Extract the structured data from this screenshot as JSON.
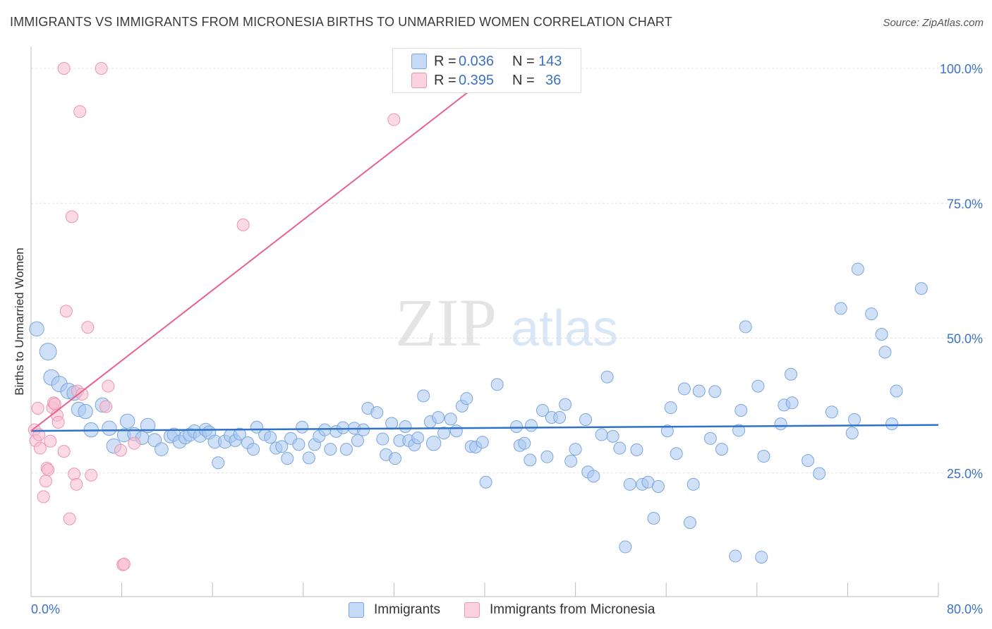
{
  "title": "IMMIGRANTS VS IMMIGRANTS FROM MICRONESIA BIRTHS TO UNMARRIED WOMEN CORRELATION CHART",
  "source": "Source: ZipAtlas.com",
  "watermark": {
    "zip": "ZIP",
    "atlas": "atlas"
  },
  "legend_stats": {
    "r_label": "R =",
    "n_label": "N =",
    "rows": [
      {
        "r": "0.036",
        "n": "143",
        "color": "#a9c8f0"
      },
      {
        "r": "0.395",
        "n": "36",
        "color": "#f8bcd0"
      }
    ]
  },
  "colors": {
    "blue_fill": "#a9c8f0",
    "blue_stroke": "#7aa6e0",
    "blue_line": "#2f72c8",
    "pink_fill": "#f8bcd0",
    "pink_stroke": "#ee93b3",
    "pink_line": "#e8628f",
    "tick_label": "#3b72c4",
    "grid": "#e0e0e0"
  },
  "chart_data": {
    "type": "scatter",
    "title": "IMMIGRANTS VS IMMIGRANTS FROM MICRONESIA BIRTHS TO UNMARRIED WOMEN CORRELATION CHART",
    "xlabel": "",
    "ylabel": "Births to Unmarried Women",
    "xlim": [
      0,
      80
    ],
    "ylim": [
      0,
      101
    ],
    "x_tick_labels": [
      "0.0%",
      "80.0%"
    ],
    "y_ticks": [
      25,
      50,
      75,
      100
    ],
    "y_tick_labels": [
      "25.0%",
      "50.0%",
      "75.0%",
      "100.0%"
    ],
    "grid": true,
    "legend_position": "top-center",
    "series": [
      {
        "name": "Immigrants",
        "color": "#a9c8f0",
        "trend": {
          "x0": 0,
          "y0": 32.8,
          "x1": 80,
          "y1": 33.9
        },
        "points": [
          [
            0.5,
            51.7,
            1.2
          ],
          [
            1.5,
            47.5,
            1.4
          ],
          [
            1.8,
            42.7,
            1.3
          ],
          [
            2.5,
            41.5,
            1.3
          ],
          [
            3.3,
            40.2,
            1.3
          ],
          [
            3.8,
            39.8,
            1.2
          ],
          [
            4.2,
            36.8,
            1.2
          ],
          [
            4.8,
            36.4,
            1.2
          ],
          [
            5.3,
            33.0,
            1.2
          ],
          [
            6.3,
            37.6,
            1.2
          ],
          [
            6.9,
            33.3,
            1.2
          ],
          [
            7.3,
            30.0,
            1.2
          ],
          [
            8.2,
            32.0,
            1.1
          ],
          [
            8.5,
            34.6,
            1.2
          ],
          [
            9.1,
            32.2,
            1.1
          ],
          [
            9.8,
            31.5,
            1.1
          ],
          [
            10.3,
            33.8,
            1.2
          ],
          [
            10.9,
            31.1,
            1.1
          ],
          [
            11.5,
            29.4,
            1.1
          ],
          [
            12.3,
            31.8,
            1.1
          ],
          [
            12.6,
            32.1,
            1.1
          ],
          [
            13.1,
            30.8,
            1.1
          ],
          [
            13.6,
            31.6,
            1.1
          ],
          [
            14.0,
            32.1,
            1.1
          ],
          [
            14.4,
            32.7,
            1.1
          ],
          [
            14.9,
            31.9,
            1.1
          ],
          [
            15.4,
            33.0,
            1.1
          ],
          [
            15.7,
            32.5,
            1.1
          ],
          [
            16.2,
            30.8,
            1.1
          ],
          [
            16.5,
            26.9,
            1.0
          ],
          [
            17.1,
            30.8,
            1.1
          ],
          [
            17.6,
            31.9,
            1.1
          ],
          [
            18.0,
            31.0,
            1.0
          ],
          [
            18.4,
            32.2,
            1.0
          ],
          [
            19.1,
            30.6,
            1.0
          ],
          [
            19.6,
            29.4,
            1.0
          ],
          [
            19.9,
            33.5,
            1.0
          ],
          [
            20.6,
            32.1,
            1.0
          ],
          [
            21.1,
            31.6,
            1.0
          ],
          [
            21.6,
            29.6,
            1.0
          ],
          [
            22.1,
            29.9,
            1.0
          ],
          [
            22.6,
            27.7,
            1.0
          ],
          [
            22.9,
            31.4,
            1.0
          ],
          [
            23.6,
            30.3,
            1.0
          ],
          [
            23.9,
            33.5,
            1.0
          ],
          [
            24.5,
            27.8,
            1.0
          ],
          [
            25.0,
            30.3,
            1.0
          ],
          [
            25.4,
            31.8,
            1.0
          ],
          [
            25.9,
            33.0,
            1.0
          ],
          [
            26.4,
            29.4,
            1.0
          ],
          [
            26.9,
            32.7,
            1.0
          ],
          [
            27.5,
            33.4,
            1.0
          ],
          [
            27.8,
            29.4,
            1.0
          ],
          [
            28.5,
            33.3,
            1.0
          ],
          [
            28.8,
            31.0,
            1.0
          ],
          [
            29.3,
            33.0,
            1.0
          ],
          [
            29.7,
            37.0,
            1.0
          ],
          [
            30.5,
            36.2,
            1.0
          ],
          [
            31.0,
            31.3,
            1.0
          ],
          [
            31.3,
            28.4,
            1.0
          ],
          [
            31.8,
            34.2,
            1.0
          ],
          [
            32.1,
            27.7,
            1.0
          ],
          [
            32.5,
            31.0,
            1.0
          ],
          [
            33.0,
            33.6,
            1.0
          ],
          [
            33.3,
            31.0,
            1.0
          ],
          [
            33.8,
            30.2,
            1.0
          ],
          [
            34.1,
            31.5,
            1.0
          ],
          [
            34.6,
            39.3,
            1.0
          ],
          [
            35.2,
            34.5,
            1.0
          ],
          [
            35.5,
            30.5,
            1.2
          ],
          [
            35.9,
            35.3,
            1.0
          ],
          [
            36.4,
            32.4,
            1.0
          ],
          [
            37.0,
            35.0,
            1.0
          ],
          [
            37.5,
            32.8,
            1.0
          ],
          [
            38.0,
            37.4,
            1.0
          ],
          [
            38.4,
            38.8,
            1.0
          ],
          [
            38.8,
            29.9,
            1.0
          ],
          [
            39.2,
            29.8,
            1.0
          ],
          [
            39.8,
            30.7,
            1.0
          ],
          [
            40.1,
            23.3,
            1.0
          ],
          [
            41.1,
            41.4,
            1.0
          ],
          [
            42.8,
            33.6,
            1.0
          ],
          [
            43.1,
            30.1,
            1.0
          ],
          [
            43.5,
            30.5,
            1.0
          ],
          [
            44.0,
            27.4,
            1.0
          ],
          [
            44.1,
            33.8,
            1.0
          ],
          [
            45.1,
            36.6,
            1.0
          ],
          [
            45.5,
            28.0,
            1.0
          ],
          [
            45.9,
            35.3,
            1.0
          ],
          [
            46.6,
            35.3,
            1.0
          ],
          [
            47.1,
            37.7,
            1.0
          ],
          [
            47.6,
            27.2,
            1.0
          ],
          [
            48.0,
            29.4,
            1.0
          ],
          [
            48.9,
            34.9,
            1.0
          ],
          [
            49.1,
            25.2,
            1.0
          ],
          [
            49.6,
            24.4,
            1.0
          ],
          [
            50.3,
            32.1,
            1.0
          ],
          [
            50.8,
            42.8,
            1.0
          ],
          [
            51.3,
            31.8,
            1.0
          ],
          [
            51.9,
            29.6,
            1.0
          ],
          [
            52.4,
            11.3,
            1.0
          ],
          [
            52.8,
            22.9,
            1.0
          ],
          [
            53.4,
            29.3,
            1.0
          ],
          [
            53.9,
            22.9,
            1.0
          ],
          [
            54.4,
            23.3,
            1.0
          ],
          [
            54.9,
            16.6,
            1.0
          ],
          [
            55.3,
            22.5,
            1.0
          ],
          [
            56.1,
            32.8,
            1.0
          ],
          [
            56.4,
            37.1,
            1.0
          ],
          [
            56.9,
            28.6,
            1.0
          ],
          [
            57.6,
            40.6,
            1.0
          ],
          [
            58.1,
            15.8,
            1.0
          ],
          [
            58.4,
            22.9,
            1.0
          ],
          [
            58.9,
            40.2,
            1.0
          ],
          [
            59.9,
            31.4,
            1.0
          ],
          [
            60.3,
            40.1,
            1.0
          ],
          [
            60.9,
            29.4,
            1.0
          ],
          [
            62.1,
            9.6,
            1.0
          ],
          [
            62.4,
            32.9,
            1.0
          ],
          [
            62.6,
            36.6,
            1.0
          ],
          [
            63.0,
            52.1,
            1.0
          ],
          [
            64.1,
            41.1,
            1.0
          ],
          [
            64.4,
            9.4,
            1.0
          ],
          [
            64.6,
            28.1,
            1.0
          ],
          [
            66.1,
            34.1,
            1.0
          ],
          [
            66.4,
            37.6,
            1.0
          ],
          [
            67.0,
            43.3,
            1.0
          ],
          [
            67.1,
            38.0,
            1.0
          ],
          [
            68.5,
            27.3,
            1.0
          ],
          [
            69.5,
            24.9,
            1.0
          ],
          [
            70.6,
            36.3,
            1.0
          ],
          [
            71.4,
            55.5,
            1.0
          ],
          [
            72.4,
            32.4,
            1.0
          ],
          [
            72.6,
            34.9,
            1.0
          ],
          [
            72.9,
            62.8,
            1.0
          ],
          [
            74.1,
            54.5,
            1.0
          ],
          [
            75.0,
            50.7,
            1.0
          ],
          [
            75.3,
            47.4,
            1.0
          ],
          [
            75.9,
            34.1,
            1.0
          ],
          [
            76.3,
            40.2,
            1.0
          ],
          [
            78.5,
            59.2,
            1.0
          ]
        ]
      },
      {
        "name": "Immigrants from Micronesia",
        "color": "#f8bcd0",
        "trend": {
          "x0": 0,
          "y0": 32.8,
          "x1": 40,
          "y1": 98
        },
        "points": [
          [
            0.3,
            33.0,
            1.0
          ],
          [
            0.4,
            31.0,
            1.0
          ],
          [
            0.6,
            37.0,
            1.0
          ],
          [
            0.7,
            32.1,
            1.0
          ],
          [
            0.8,
            29.6,
            1.0
          ],
          [
            1.1,
            20.6,
            1.0
          ],
          [
            1.3,
            23.5,
            1.0
          ],
          [
            1.4,
            25.9,
            1.0
          ],
          [
            1.5,
            25.6,
            1.0
          ],
          [
            1.7,
            30.9,
            1.0
          ],
          [
            1.9,
            37.1,
            1.0
          ],
          [
            2.0,
            38.0,
            1.0
          ],
          [
            2.1,
            37.8,
            1.0
          ],
          [
            2.3,
            35.7,
            1.0
          ],
          [
            2.4,
            34.4,
            1.0
          ],
          [
            2.9,
            29.0,
            1.0
          ],
          [
            3.1,
            55.0,
            1.0
          ],
          [
            3.4,
            16.5,
            1.0
          ],
          [
            3.6,
            72.5,
            1.0
          ],
          [
            3.8,
            24.8,
            1.0
          ],
          [
            4.0,
            22.9,
            1.0
          ],
          [
            4.1,
            40.2,
            1.0
          ],
          [
            4.5,
            39.6,
            1.0
          ],
          [
            5.0,
            52.0,
            1.0
          ],
          [
            5.3,
            24.6,
            1.0
          ],
          [
            6.6,
            37.3,
            1.0
          ],
          [
            6.8,
            41.1,
            1.0
          ],
          [
            4.3,
            92.0,
            1.0
          ],
          [
            2.9,
            100.0,
            1.0
          ],
          [
            6.2,
            100.0,
            1.0
          ],
          [
            7.9,
            29.2,
            1.0
          ],
          [
            8.1,
            8.0,
            1.0
          ],
          [
            8.2,
            8.1,
            1.0
          ],
          [
            9.1,
            30.5,
            1.0
          ],
          [
            18.7,
            71.0,
            1.0
          ],
          [
            32.0,
            90.5,
            1.0
          ]
        ]
      }
    ]
  }
}
